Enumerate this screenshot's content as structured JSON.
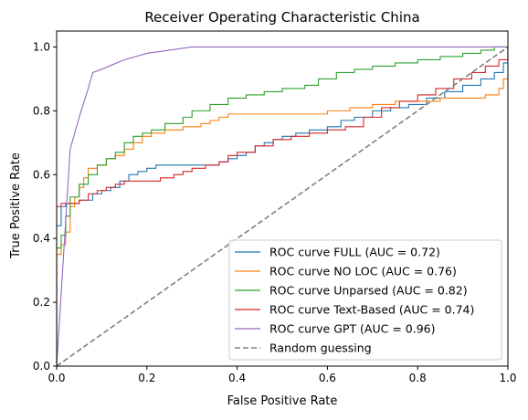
{
  "chart_data": {
    "type": "line",
    "title": "Receiver Operating Characteristic China",
    "xlabel": "False Positive Rate",
    "ylabel": "True Positive Rate",
    "xlim": [
      0.0,
      1.0
    ],
    "ylim": [
      0.0,
      1.05
    ],
    "x_ticks": [
      "0.0",
      "0.2",
      "0.4",
      "0.6",
      "0.8",
      "1.0"
    ],
    "y_ticks": [
      "0.0",
      "0.2",
      "0.4",
      "0.6",
      "0.8",
      "1.0"
    ],
    "grid": false,
    "legend_position": "lower-right",
    "series": [
      {
        "name": "ROC curve FULL (AUC = 0.72)",
        "color": "#1f77b4",
        "style": "steps",
        "points": [
          [
            0.0,
            0.0
          ],
          [
            0.0,
            0.44
          ],
          [
            0.01,
            0.44
          ],
          [
            0.01,
            0.5
          ],
          [
            0.02,
            0.5
          ],
          [
            0.02,
            0.51
          ],
          [
            0.05,
            0.52
          ],
          [
            0.08,
            0.54
          ],
          [
            0.1,
            0.55
          ],
          [
            0.12,
            0.56
          ],
          [
            0.14,
            0.58
          ],
          [
            0.16,
            0.6
          ],
          [
            0.18,
            0.61
          ],
          [
            0.2,
            0.62
          ],
          [
            0.22,
            0.63
          ],
          [
            0.25,
            0.63
          ],
          [
            0.3,
            0.63
          ],
          [
            0.34,
            0.63
          ],
          [
            0.36,
            0.64
          ],
          [
            0.38,
            0.65
          ],
          [
            0.4,
            0.66
          ],
          [
            0.42,
            0.67
          ],
          [
            0.44,
            0.69
          ],
          [
            0.46,
            0.7
          ],
          [
            0.48,
            0.71
          ],
          [
            0.5,
            0.72
          ],
          [
            0.53,
            0.73
          ],
          [
            0.56,
            0.74
          ],
          [
            0.58,
            0.74
          ],
          [
            0.6,
            0.75
          ],
          [
            0.63,
            0.77
          ],
          [
            0.66,
            0.78
          ],
          [
            0.7,
            0.8
          ],
          [
            0.74,
            0.81
          ],
          [
            0.78,
            0.82
          ],
          [
            0.82,
            0.84
          ],
          [
            0.86,
            0.86
          ],
          [
            0.9,
            0.88
          ],
          [
            0.94,
            0.9
          ],
          [
            0.97,
            0.92
          ],
          [
            0.99,
            0.95
          ],
          [
            1.0,
            1.0
          ]
        ]
      },
      {
        "name": "ROC curve NO LOC (AUC = 0.76)",
        "color": "#ff7f0e",
        "style": "steps",
        "points": [
          [
            0.0,
            0.0
          ],
          [
            0.0,
            0.35
          ],
          [
            0.01,
            0.38
          ],
          [
            0.02,
            0.42
          ],
          [
            0.03,
            0.5
          ],
          [
            0.04,
            0.53
          ],
          [
            0.05,
            0.56
          ],
          [
            0.06,
            0.59
          ],
          [
            0.07,
            0.62
          ],
          [
            0.09,
            0.63
          ],
          [
            0.11,
            0.65
          ],
          [
            0.13,
            0.66
          ],
          [
            0.15,
            0.68
          ],
          [
            0.17,
            0.7
          ],
          [
            0.19,
            0.72
          ],
          [
            0.21,
            0.73
          ],
          [
            0.24,
            0.74
          ],
          [
            0.28,
            0.75
          ],
          [
            0.32,
            0.76
          ],
          [
            0.34,
            0.77
          ],
          [
            0.36,
            0.78
          ],
          [
            0.38,
            0.79
          ],
          [
            0.4,
            0.79
          ],
          [
            0.45,
            0.79
          ],
          [
            0.5,
            0.79
          ],
          [
            0.55,
            0.79
          ],
          [
            0.6,
            0.8
          ],
          [
            0.65,
            0.81
          ],
          [
            0.7,
            0.82
          ],
          [
            0.75,
            0.83
          ],
          [
            0.8,
            0.83
          ],
          [
            0.85,
            0.84
          ],
          [
            0.9,
            0.84
          ],
          [
            0.95,
            0.85
          ],
          [
            0.98,
            0.87
          ],
          [
            0.99,
            0.9
          ],
          [
            1.0,
            1.0
          ]
        ]
      },
      {
        "name": "ROC curve Unparsed (AUC = 0.82)",
        "color": "#2ca02c",
        "style": "steps",
        "points": [
          [
            0.0,
            0.0
          ],
          [
            0.0,
            0.37
          ],
          [
            0.01,
            0.41
          ],
          [
            0.02,
            0.47
          ],
          [
            0.03,
            0.53
          ],
          [
            0.05,
            0.57
          ],
          [
            0.07,
            0.6
          ],
          [
            0.09,
            0.63
          ],
          [
            0.11,
            0.65
          ],
          [
            0.13,
            0.67
          ],
          [
            0.15,
            0.7
          ],
          [
            0.17,
            0.72
          ],
          [
            0.19,
            0.73
          ],
          [
            0.21,
            0.74
          ],
          [
            0.24,
            0.76
          ],
          [
            0.28,
            0.78
          ],
          [
            0.3,
            0.8
          ],
          [
            0.34,
            0.82
          ],
          [
            0.38,
            0.84
          ],
          [
            0.42,
            0.85
          ],
          [
            0.46,
            0.86
          ],
          [
            0.5,
            0.87
          ],
          [
            0.55,
            0.88
          ],
          [
            0.58,
            0.9
          ],
          [
            0.62,
            0.92
          ],
          [
            0.66,
            0.93
          ],
          [
            0.7,
            0.94
          ],
          [
            0.75,
            0.95
          ],
          [
            0.8,
            0.96
          ],
          [
            0.85,
            0.97
          ],
          [
            0.9,
            0.98
          ],
          [
            0.94,
            0.99
          ],
          [
            0.97,
            1.0
          ],
          [
            1.0,
            1.0
          ]
        ]
      },
      {
        "name": "ROC curve Text-Based (AUC = 0.74)",
        "color": "#d62728",
        "style": "steps",
        "points": [
          [
            0.0,
            0.0
          ],
          [
            0.0,
            0.5
          ],
          [
            0.01,
            0.51
          ],
          [
            0.03,
            0.51
          ],
          [
            0.05,
            0.52
          ],
          [
            0.07,
            0.54
          ],
          [
            0.09,
            0.55
          ],
          [
            0.11,
            0.56
          ],
          [
            0.13,
            0.57
          ],
          [
            0.15,
            0.58
          ],
          [
            0.2,
            0.58
          ],
          [
            0.23,
            0.59
          ],
          [
            0.26,
            0.6
          ],
          [
            0.28,
            0.61
          ],
          [
            0.3,
            0.62
          ],
          [
            0.33,
            0.63
          ],
          [
            0.36,
            0.64
          ],
          [
            0.38,
            0.66
          ],
          [
            0.4,
            0.67
          ],
          [
            0.44,
            0.69
          ],
          [
            0.48,
            0.71
          ],
          [
            0.52,
            0.72
          ],
          [
            0.56,
            0.73
          ],
          [
            0.6,
            0.74
          ],
          [
            0.64,
            0.75
          ],
          [
            0.68,
            0.78
          ],
          [
            0.72,
            0.81
          ],
          [
            0.76,
            0.83
          ],
          [
            0.8,
            0.85
          ],
          [
            0.84,
            0.87
          ],
          [
            0.88,
            0.9
          ],
          [
            0.92,
            0.92
          ],
          [
            0.95,
            0.94
          ],
          [
            0.98,
            0.96
          ],
          [
            1.0,
            0.99
          ]
        ]
      },
      {
        "name": "ROC curve GPT (AUC = 0.96)",
        "color": "#9467bd",
        "style": "line",
        "points": [
          [
            0.0,
            0.0
          ],
          [
            0.03,
            0.68
          ],
          [
            0.05,
            0.78
          ],
          [
            0.07,
            0.87
          ],
          [
            0.08,
            0.92
          ],
          [
            0.1,
            0.93
          ],
          [
            0.15,
            0.96
          ],
          [
            0.2,
            0.98
          ],
          [
            0.3,
            1.0
          ],
          [
            1.0,
            1.0
          ]
        ]
      },
      {
        "name": "Random guessing",
        "color": "#808080",
        "style": "dashed",
        "points": [
          [
            0.0,
            0.0
          ],
          [
            1.0,
            1.0
          ]
        ]
      }
    ]
  }
}
